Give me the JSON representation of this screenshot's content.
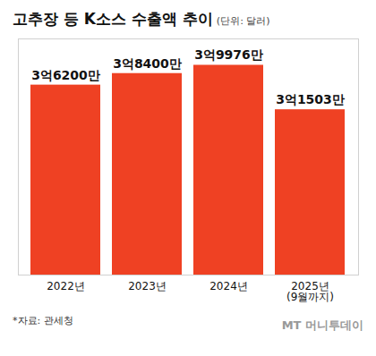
{
  "chart_data": {
    "type": "bar",
    "title": "고추장 등 K소스 수출액 추이",
    "subtitle": "(단위: 달러)",
    "categories": [
      "2022년",
      "2023년",
      "2024년",
      "2025년\n(9월까지)"
    ],
    "values": [
      362000000,
      384000000,
      399760000,
      315030000
    ],
    "value_labels": [
      "3억6200만",
      "3억8400만",
      "3억9976만",
      "3억1503만"
    ],
    "color": "#ef4123",
    "ylim": [
      0,
      450000000
    ],
    "data_labels": true,
    "tick_labels": "x",
    "grid": false,
    "source": "*자료: 관세청",
    "credit": "MT 머니투데이"
  }
}
